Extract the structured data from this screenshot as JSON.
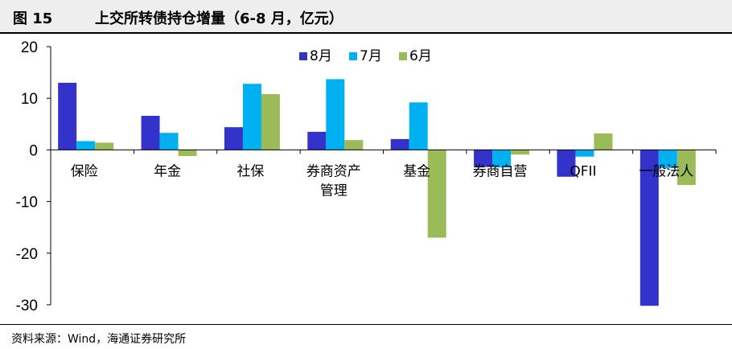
{
  "figure": {
    "number": "图 15",
    "title": "上交所转债持仓增量（6-8 月，亿元）",
    "source": "资料来源：Wind，海通证券研究所"
  },
  "colors": {
    "8月": "#3333cc",
    "7月": "#00b0f0",
    "6月": "#9bbb59",
    "axis": "#000000"
  },
  "chart_data": {
    "type": "bar",
    "title": "",
    "xlabel": "",
    "ylabel": "",
    "ylim": [
      -30,
      20
    ],
    "yticks": [
      20,
      10,
      0,
      -10,
      -20,
      -30
    ],
    "grid": false,
    "legend": "top-center",
    "categories": [
      "保险",
      "年金",
      "社保",
      "券商资产管理",
      "基金",
      "券商自营",
      "QFII",
      "一般法人"
    ],
    "category_lines": [
      [
        "保险"
      ],
      [
        "年金"
      ],
      [
        "社保"
      ],
      [
        "券商资产",
        "管理"
      ],
      [
        "基金"
      ],
      [
        "券商自营"
      ],
      [
        "QFII"
      ],
      [
        "一般法人"
      ]
    ],
    "series": [
      {
        "name": "8月",
        "values": [
          13.0,
          6.6,
          4.4,
          3.5,
          2.1,
          -3.3,
          -5.2,
          -30.2
        ]
      },
      {
        "name": "7月",
        "values": [
          1.7,
          3.3,
          12.8,
          13.7,
          9.2,
          -3.4,
          -1.3,
          -3.5
        ]
      },
      {
        "name": "6月",
        "values": [
          1.4,
          -1.2,
          10.8,
          1.9,
          -17.0,
          -0.9,
          3.2,
          -6.8
        ]
      }
    ]
  }
}
